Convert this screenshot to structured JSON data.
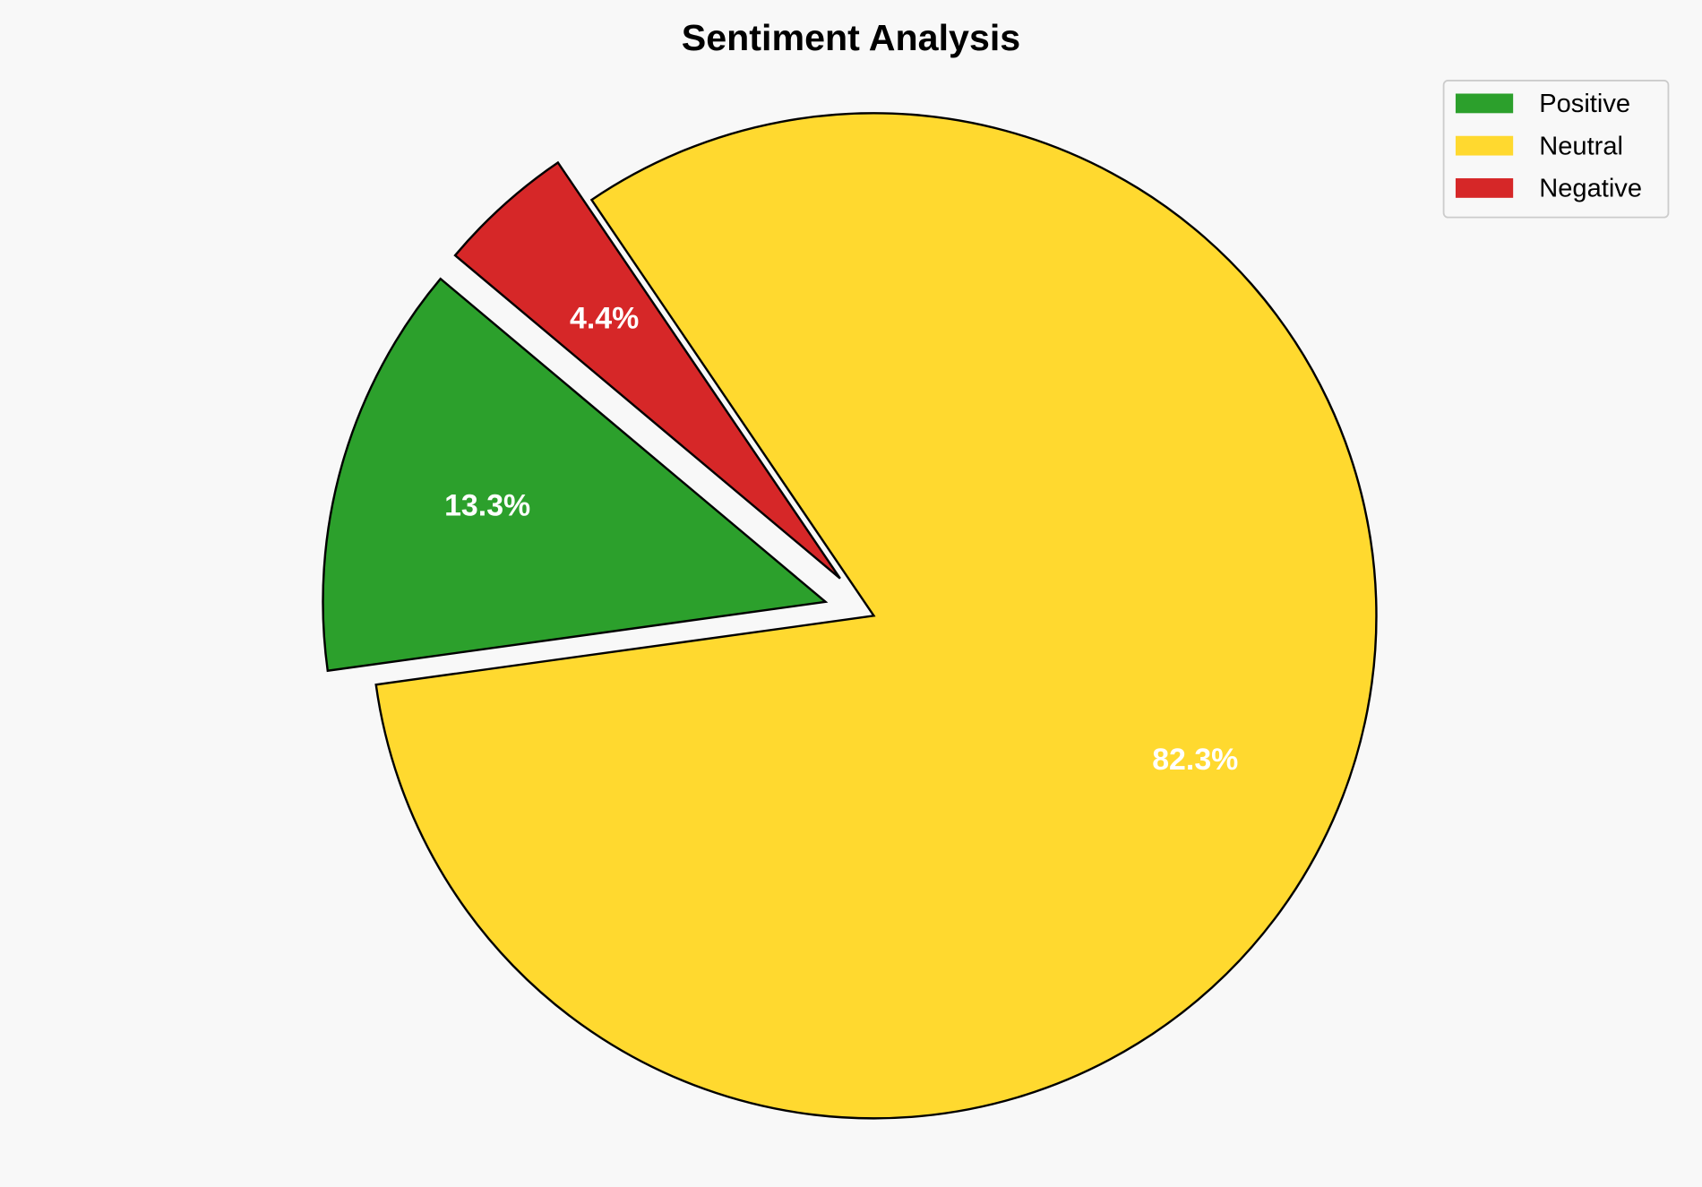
{
  "chart_data": {
    "type": "pie",
    "title": "Sentiment Analysis",
    "categories": [
      "Positive",
      "Neutral",
      "Negative"
    ],
    "values": [
      13.3,
      82.3,
      4.4
    ],
    "labels": [
      "13.3%",
      "82.3%",
      "4.4%"
    ],
    "colors": [
      "#2ca02c",
      "#ffd92f",
      "#d62728"
    ],
    "explode": [
      0.1,
      0,
      0.1
    ],
    "start_angle": 140,
    "edge_color": "#000000",
    "label_color": "#ffffff",
    "legend_placement": "top-right",
    "background": "#f8f8f8"
  }
}
